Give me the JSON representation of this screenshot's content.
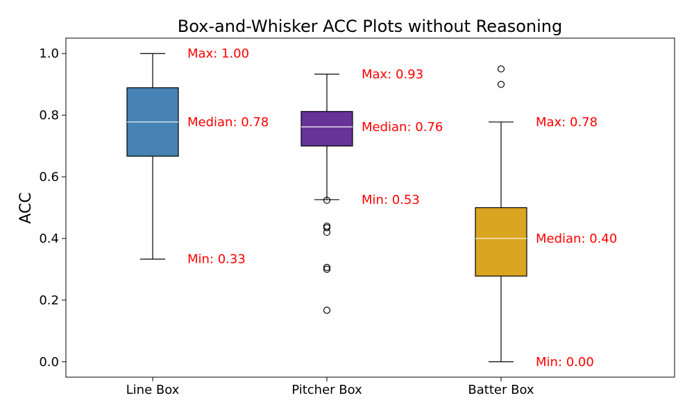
{
  "chart_data": {
    "type": "box",
    "title": "Box-and-Whisker ACC Plots without Reasoning",
    "xlabel": "",
    "ylabel": "ACC",
    "ylim": [
      -0.05,
      1.05
    ],
    "yticks": [
      0.0,
      0.2,
      0.4,
      0.6,
      0.8,
      1.0
    ],
    "ytick_labels": [
      "0.0",
      "0.2",
      "0.4",
      "0.6",
      "0.8",
      "1.0"
    ],
    "grid": false,
    "annotation_color": "#ff0000",
    "median_line_color": "#ffffff",
    "boxes": [
      {
        "label": "Line Box",
        "color": "#4682b4",
        "whisker_low": 0.333,
        "q1": 0.667,
        "median": 0.778,
        "q3": 0.889,
        "whisker_high": 1.0,
        "outliers": [],
        "annotations": {
          "max": "Max: 1.00",
          "median": "Median: 0.78",
          "min": "Min: 0.33"
        }
      },
      {
        "label": "Pitcher Box",
        "color": "#663399",
        "whisker_low": 0.526,
        "q1": 0.7,
        "median": 0.762,
        "q3": 0.812,
        "whisker_high": 0.933,
        "outliers": [
          0.524,
          0.44,
          0.435,
          0.42,
          0.306,
          0.3,
          0.167
        ],
        "annotations": {
          "max": "Max: 0.93",
          "median": "Median: 0.76",
          "min": "Min: 0.53"
        }
      },
      {
        "label": "Batter Box",
        "color": "#daa520",
        "whisker_low": 0.0,
        "q1": 0.278,
        "median": 0.4,
        "q3": 0.5,
        "whisker_high": 0.778,
        "outliers": [
          0.9,
          0.95
        ],
        "annotations": {
          "max": "Max: 0.78",
          "median": "Median: 0.40",
          "min": "Min: 0.00"
        }
      }
    ]
  }
}
